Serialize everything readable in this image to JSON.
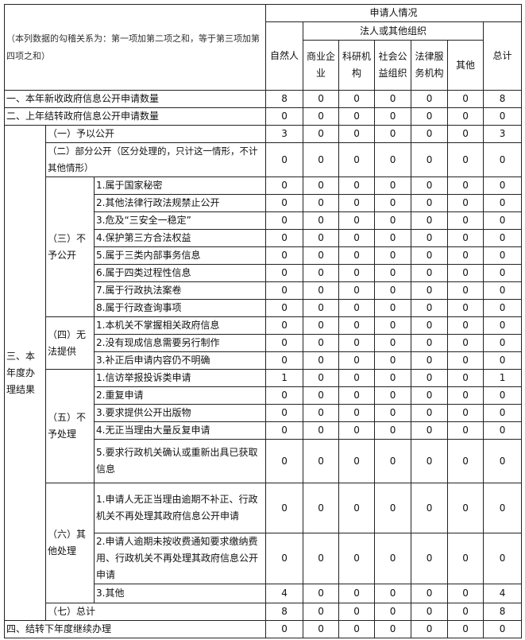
{
  "header": {
    "note": "（本列数据的勾稽关系为：第一项加第二项之和，等于第三项加第四项之和）",
    "applicant_situation": "申请人情况",
    "legal_person_group": "法人或其他组织",
    "columns": [
      "自然人",
      "商业企业",
      "科研机构",
      "社会公益组织",
      "法律服务机构",
      "其他",
      "总计"
    ]
  },
  "row1": {
    "label": "一、本年新收政府信息公开申请数量",
    "values": [
      "8",
      "0",
      "0",
      "0",
      "0",
      "0",
      "8"
    ]
  },
  "row2": {
    "label": "二、上年结转政府信息公开申请数量",
    "values": [
      "0",
      "0",
      "0",
      "0",
      "0",
      "0",
      "0"
    ]
  },
  "section3": {
    "label": "三、本年度办理结果",
    "groups": [
      {
        "label": "（一）予以公开",
        "values": [
          "3",
          "0",
          "0",
          "0",
          "0",
          "0",
          "3"
        ]
      },
      {
        "label": "（二）部分公开（区分处理的，只计这一情形，不计其他情形）",
        "values": [
          "0",
          "0",
          "0",
          "0",
          "0",
          "0",
          "0"
        ]
      },
      {
        "label": "（三）不予公开",
        "items": [
          {
            "label": "1.属于国家秘密",
            "values": [
              "0",
              "0",
              "0",
              "0",
              "0",
              "0",
              "0"
            ]
          },
          {
            "label": "2.其他法律行政法规禁止公开",
            "values": [
              "0",
              "0",
              "0",
              "0",
              "0",
              "0",
              "0"
            ]
          },
          {
            "label": "3.危及“三安全一稳定”",
            "values": [
              "0",
              "0",
              "0",
              "0",
              "0",
              "0",
              "0"
            ]
          },
          {
            "label": "4.保护第三方合法权益",
            "values": [
              "0",
              "0",
              "0",
              "0",
              "0",
              "0",
              "0"
            ]
          },
          {
            "label": "5.属于三类内部事务信息",
            "values": [
              "0",
              "0",
              "0",
              "0",
              "0",
              "0",
              "0"
            ]
          },
          {
            "label": "6.属于四类过程性信息",
            "values": [
              "0",
              "0",
              "0",
              "0",
              "0",
              "0",
              "0"
            ]
          },
          {
            "label": "7.属于行政执法案卷",
            "values": [
              "0",
              "0",
              "0",
              "0",
              "0",
              "0",
              "0"
            ]
          },
          {
            "label": "8.属于行政查询事项",
            "values": [
              "0",
              "0",
              "0",
              "0",
              "0",
              "0",
              "0"
            ]
          }
        ]
      },
      {
        "label": "（四）无法提供",
        "items": [
          {
            "label": "1.本机关不掌握相关政府信息",
            "values": [
              "0",
              "0",
              "0",
              "0",
              "0",
              "0",
              "0"
            ]
          },
          {
            "label": "2.没有现成信息需要另行制作",
            "values": [
              "0",
              "0",
              "0",
              "0",
              "0",
              "0",
              "0"
            ]
          },
          {
            "label": "3.补正后申请内容仍不明确",
            "values": [
              "0",
              "0",
              "0",
              "0",
              "0",
              "0",
              "0"
            ]
          }
        ]
      },
      {
        "label": "（五）不予处理",
        "items": [
          {
            "label": "1.信访举报投诉类申请",
            "values": [
              "1",
              "0",
              "0",
              "0",
              "0",
              "0",
              "1"
            ]
          },
          {
            "label": "2.重复申请",
            "values": [
              "0",
              "0",
              "0",
              "0",
              "0",
              "0",
              "0"
            ]
          },
          {
            "label": "3.要求提供公开出版物",
            "values": [
              "0",
              "0",
              "0",
              "0",
              "0",
              "0",
              "0"
            ]
          },
          {
            "label": "4.无正当理由大量反复申请",
            "values": [
              "0",
              "0",
              "0",
              "0",
              "0",
              "0",
              "0"
            ]
          },
          {
            "label": "5.要求行政机关确认或重新出具已获取信息",
            "values": [
              "0",
              "0",
              "0",
              "0",
              "0",
              "0",
              "0"
            ]
          }
        ]
      },
      {
        "label": "（六）其他处理",
        "items": [
          {
            "label": "1.申请人无正当理由逾期不补正、行政机关不再处理其政府信息公开申请",
            "values": [
              "0",
              "0",
              "0",
              "0",
              "0",
              "0",
              "0"
            ]
          },
          {
            "label": "2.申请人逾期未按收费通知要求缴纳费用、行政机关不再处理其政府信息公开申请",
            "values": [
              "0",
              "0",
              "0",
              "0",
              "0",
              "0",
              "0"
            ]
          },
          {
            "label": "3.其他",
            "values": [
              "4",
              "0",
              "0",
              "0",
              "0",
              "0",
              "4"
            ]
          }
        ]
      },
      {
        "label": "（七）总计",
        "values": [
          "8",
          "0",
          "0",
          "0",
          "0",
          "0",
          "8"
        ]
      }
    ]
  },
  "row4": {
    "label": "四、结转下年度继续办理",
    "values": [
      "0",
      "0",
      "0",
      "0",
      "0",
      "0",
      "0"
    ]
  }
}
